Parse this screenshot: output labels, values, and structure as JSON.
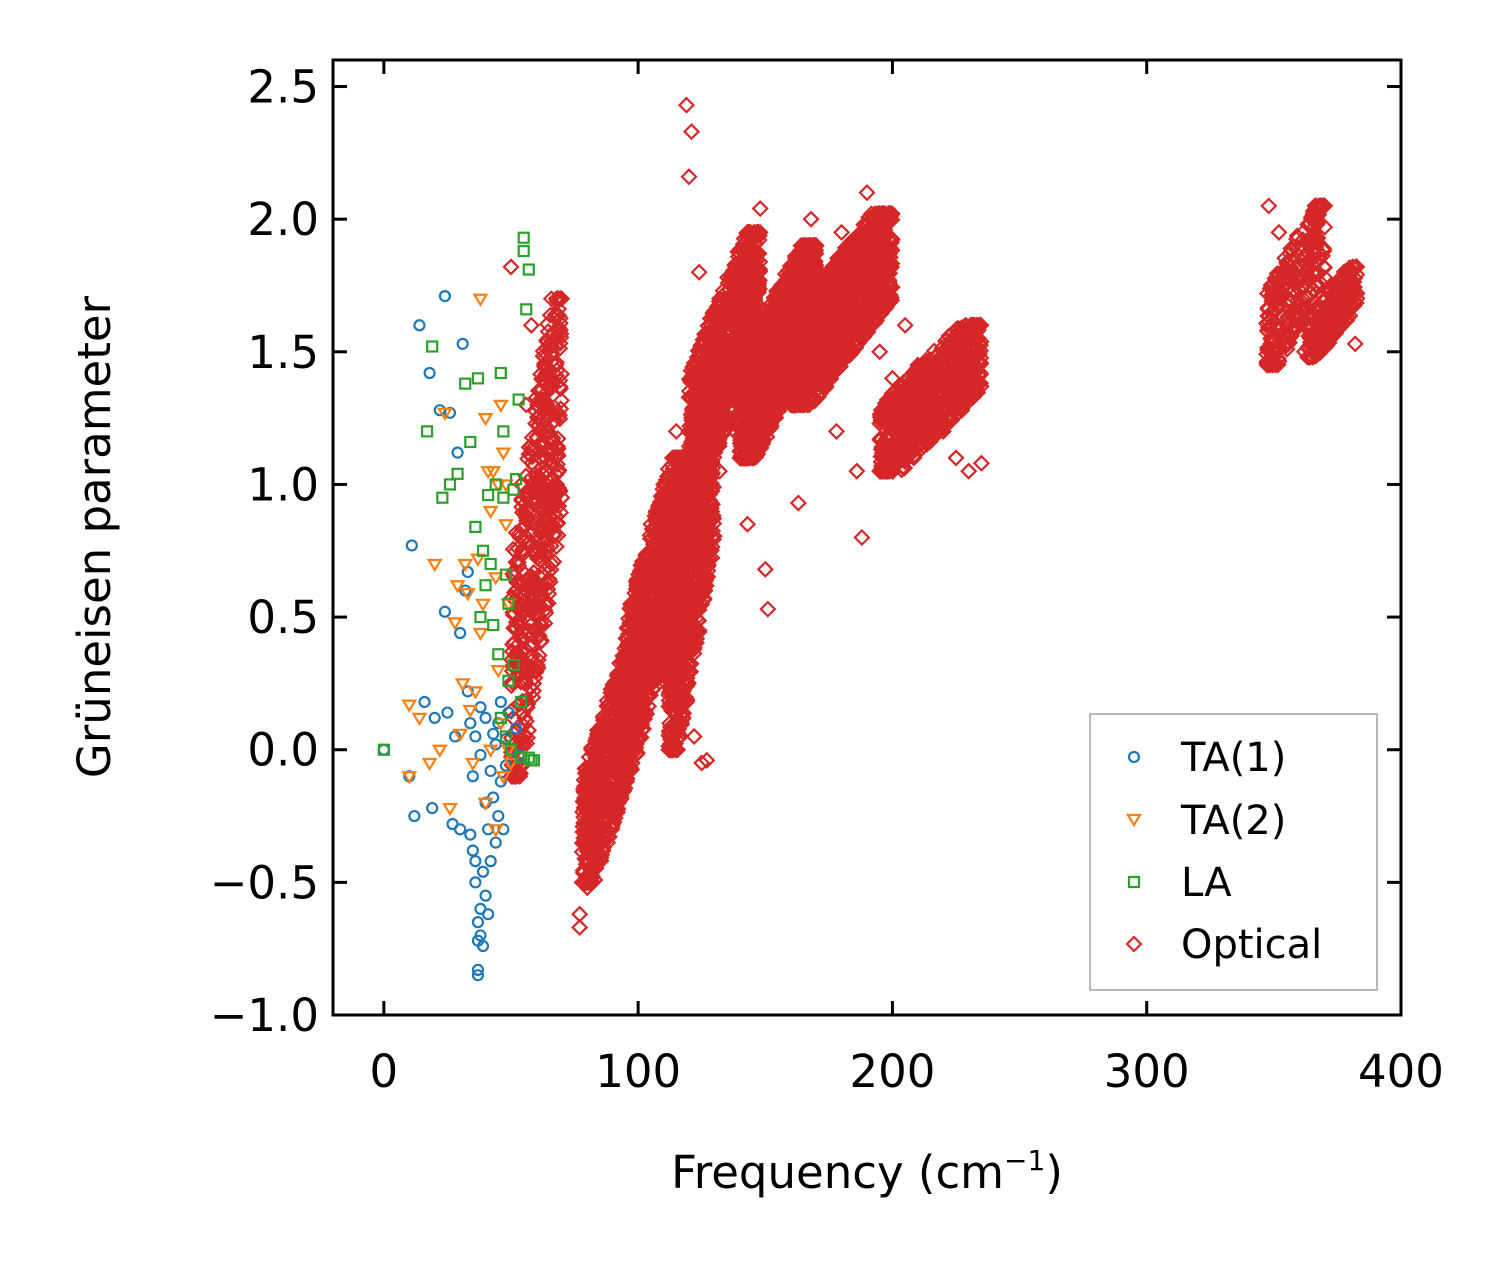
{
  "chart_data": {
    "type": "scatter",
    "title": "",
    "xlabel": "Frequency (cm",
    "xlabel_sup": "−1",
    "xlabel_suffix": ")",
    "ylabel": "Grüneisen parameter",
    "xlim": [
      -20,
      400
    ],
    "ylim": [
      -1.0,
      2.6
    ],
    "xticks": [
      0,
      100,
      200,
      300,
      400
    ],
    "xtick_labels": [
      "0",
      "100",
      "200",
      "300",
      "400"
    ],
    "yticks": [
      -1.0,
      -0.5,
      0.0,
      0.5,
      1.0,
      1.5,
      2.0,
      2.5
    ],
    "ytick_labels": [
      "−1.0",
      "−0.5",
      "0.0",
      "0.5",
      "1.0",
      "1.5",
      "2.0",
      "2.5"
    ],
    "grid": false,
    "legend_position": "bottom-right",
    "series": [
      {
        "name": "TA(1)",
        "marker": "circle",
        "color": "#1f77b4",
        "points": [
          [
            0,
            0.0
          ],
          [
            10,
            -0.1
          ],
          [
            12,
            -0.25
          ],
          [
            14,
            1.6
          ],
          [
            16,
            0.18
          ],
          [
            18,
            1.42
          ],
          [
            19,
            -0.22
          ],
          [
            20,
            0.12
          ],
          [
            22,
            1.28
          ],
          [
            24,
            1.71
          ],
          [
            24,
            0.52
          ],
          [
            25,
            0.14
          ],
          [
            26,
            1.27
          ],
          [
            27,
            -0.28
          ],
          [
            28,
            0.05
          ],
          [
            29,
            1.12
          ],
          [
            30,
            0.44
          ],
          [
            30,
            -0.3
          ],
          [
            31,
            1.53
          ],
          [
            32,
            0.6
          ],
          [
            33,
            0.67
          ],
          [
            33,
            0.22
          ],
          [
            34,
            0.1
          ],
          [
            34,
            -0.32
          ],
          [
            35,
            -0.1
          ],
          [
            35,
            -0.38
          ],
          [
            36,
            0.05
          ],
          [
            36,
            -0.42
          ],
          [
            36,
            -0.5
          ],
          [
            37,
            -0.65
          ],
          [
            37,
            -0.72
          ],
          [
            37,
            -0.83
          ],
          [
            37,
            -0.85
          ],
          [
            38,
            -0.02
          ],
          [
            38,
            -0.7
          ],
          [
            38,
            -0.6
          ],
          [
            38,
            0.16
          ],
          [
            39,
            -0.74
          ],
          [
            39,
            -0.46
          ],
          [
            40,
            -0.55
          ],
          [
            40,
            -0.2
          ],
          [
            40,
            0.12
          ],
          [
            41,
            -0.3
          ],
          [
            41,
            -0.62
          ],
          [
            42,
            -0.08
          ],
          [
            42,
            -0.42
          ],
          [
            43,
            0.06
          ],
          [
            43,
            -0.18
          ],
          [
            44,
            -0.35
          ],
          [
            44,
            0.02
          ],
          [
            45,
            -0.25
          ],
          [
            45,
            0.1
          ],
          [
            46,
            -0.12
          ],
          [
            46,
            0.18
          ],
          [
            47,
            -0.3
          ],
          [
            48,
            0.04
          ],
          [
            48,
            -0.06
          ],
          [
            49,
            0.14
          ],
          [
            50,
            0.0
          ],
          [
            52,
            0.08
          ],
          [
            53,
            -0.02
          ],
          [
            11,
            0.77
          ]
        ]
      },
      {
        "name": "TA(2)",
        "marker": "triangle-down",
        "color": "#ff7f0e",
        "points": [
          [
            10,
            -0.1
          ],
          [
            10,
            0.17
          ],
          [
            14,
            0.12
          ],
          [
            18,
            -0.05
          ],
          [
            20,
            0.7
          ],
          [
            22,
            0.0
          ],
          [
            24,
            1.27
          ],
          [
            26,
            -0.22
          ],
          [
            28,
            0.48
          ],
          [
            29,
            0.62
          ],
          [
            30,
            0.06
          ],
          [
            31,
            0.25
          ],
          [
            32,
            0.7
          ],
          [
            33,
            0.59
          ],
          [
            34,
            0.15
          ],
          [
            35,
            -0.05
          ],
          [
            36,
            0.22
          ],
          [
            37,
            0.72
          ],
          [
            38,
            0.44
          ],
          [
            38,
            1.7
          ],
          [
            39,
            0.55
          ],
          [
            40,
            1.25
          ],
          [
            40,
            -0.2
          ],
          [
            41,
            1.05
          ],
          [
            42,
            0.9
          ],
          [
            42,
            0.0
          ],
          [
            43,
            1.05
          ],
          [
            44,
            0.65
          ],
          [
            44,
            -0.3
          ],
          [
            45,
            1.0
          ],
          [
            45,
            0.3
          ],
          [
            46,
            1.3
          ],
          [
            46,
            0.1
          ],
          [
            47,
            1.12
          ],
          [
            47,
            -0.1
          ],
          [
            48,
            1.0
          ],
          [
            48,
            0.85
          ],
          [
            49,
            0.55
          ],
          [
            49,
            0.0
          ],
          [
            50,
            -0.05
          ]
        ]
      },
      {
        "name": "LA",
        "marker": "square",
        "color": "#2ca02c",
        "points": [
          [
            0,
            0.0
          ],
          [
            17,
            1.2
          ],
          [
            19,
            1.52
          ],
          [
            23,
            0.95
          ],
          [
            26,
            1.0
          ],
          [
            29,
            1.04
          ],
          [
            32,
            1.38
          ],
          [
            34,
            1.16
          ],
          [
            36,
            0.84
          ],
          [
            37,
            1.4
          ],
          [
            38,
            0.5
          ],
          [
            39,
            0.75
          ],
          [
            40,
            0.62
          ],
          [
            41,
            0.96
          ],
          [
            42,
            0.7
          ],
          [
            43,
            0.47
          ],
          [
            44,
            1.0
          ],
          [
            45,
            0.36
          ],
          [
            46,
            1.42
          ],
          [
            46,
            0.12
          ],
          [
            47,
            0.95
          ],
          [
            47,
            1.2
          ],
          [
            48,
            0.66
          ],
          [
            48,
            0.05
          ],
          [
            49,
            0.55
          ],
          [
            49,
            0.26
          ],
          [
            50,
            0.0
          ],
          [
            51,
            0.98
          ],
          [
            51,
            0.32
          ],
          [
            52,
            1.02
          ],
          [
            53,
            1.32
          ],
          [
            54,
            0.18
          ],
          [
            54,
            -0.03
          ],
          [
            55,
            1.93
          ],
          [
            55,
            1.88
          ],
          [
            56,
            1.66
          ],
          [
            57,
            1.81
          ],
          [
            57,
            -0.03
          ],
          [
            58,
            -0.04
          ],
          [
            59,
            -0.04
          ]
        ]
      },
      {
        "name": "Optical",
        "marker": "diamond",
        "color": "#d62728",
        "points": [
          [
            50,
            1.82
          ],
          [
            52,
            0.6
          ],
          [
            54,
            1.0
          ],
          [
            56,
            1.3
          ],
          [
            58,
            1.6
          ],
          [
            60,
            0.3
          ],
          [
            62,
            0.9
          ],
          [
            64,
            1.2
          ],
          [
            66,
            0.7
          ],
          [
            68,
            1.0
          ],
          [
            70,
            0.95
          ],
          [
            77,
            -0.62
          ],
          [
            77,
            -0.67
          ],
          [
            80,
            -0.52
          ],
          [
            82,
            -0.48
          ],
          [
            85,
            -0.2
          ],
          [
            88,
            -0.35
          ],
          [
            90,
            0.05
          ],
          [
            92,
            -0.1
          ],
          [
            95,
            0.3
          ],
          [
            98,
            0.45
          ],
          [
            100,
            0.6
          ],
          [
            103,
            0.25
          ],
          [
            105,
            0.85
          ],
          [
            108,
            0.5
          ],
          [
            110,
            1.0
          ],
          [
            112,
            0.72
          ],
          [
            115,
            1.2
          ],
          [
            118,
            0.9
          ],
          [
            119,
            2.43
          ],
          [
            120,
            2.16
          ],
          [
            121,
            2.33
          ],
          [
            122,
            0.05
          ],
          [
            124,
            1.8
          ],
          [
            125,
            -0.05
          ],
          [
            127,
            -0.04
          ],
          [
            130,
            1.5
          ],
          [
            132,
            1.05
          ],
          [
            135,
            1.7
          ],
          [
            138,
            1.2
          ],
          [
            140,
            1.6
          ],
          [
            143,
            0.85
          ],
          [
            145,
            1.75
          ],
          [
            148,
            2.04
          ],
          [
            150,
            0.68
          ],
          [
            151,
            0.53
          ],
          [
            155,
            1.5
          ],
          [
            160,
            1.65
          ],
          [
            163,
            0.93
          ],
          [
            165,
            1.85
          ],
          [
            168,
            2.0
          ],
          [
            172,
            1.35
          ],
          [
            175,
            1.8
          ],
          [
            178,
            1.2
          ],
          [
            180,
            1.95
          ],
          [
            183,
            1.55
          ],
          [
            186,
            1.05
          ],
          [
            188,
            0.8
          ],
          [
            190,
            2.1
          ],
          [
            192,
            1.7
          ],
          [
            195,
            1.5
          ],
          [
            198,
            1.75
          ],
          [
            200,
            1.4
          ],
          [
            205,
            1.6
          ],
          [
            210,
            1.45
          ],
          [
            215,
            1.3
          ],
          [
            220,
            1.2
          ],
          [
            225,
            1.1
          ],
          [
            230,
            1.05
          ],
          [
            235,
            1.08
          ],
          [
            348,
            2.05
          ],
          [
            352,
            1.95
          ],
          [
            355,
            1.8
          ],
          [
            358,
            1.6
          ],
          [
            362,
            1.5
          ],
          [
            366,
            1.55
          ],
          [
            370,
            1.78
          ],
          [
            374,
            1.72
          ],
          [
            378,
            1.62
          ],
          [
            382,
            1.53
          ]
        ],
        "clouds": [
          {
            "x": [
              50,
              70
            ],
            "y": [
              -0.1,
              1.7
            ],
            "n": 500
          },
          {
            "x": [
              78,
              100
            ],
            "y": [
              -0.5,
              0.4
            ],
            "n": 700
          },
          {
            "x": [
              95,
              118
            ],
            "y": [
              0.0,
              1.1
            ],
            "n": 900
          },
          {
            "x": [
              112,
              130
            ],
            "y": [
              0.0,
              1.4
            ],
            "n": 800
          },
          {
            "x": [
              120,
              148
            ],
            "y": [
              1.0,
              1.95
            ],
            "n": 900
          },
          {
            "x": [
              140,
              170
            ],
            "y": [
              1.1,
              1.9
            ],
            "n": 1100
          },
          {
            "x": [
              160,
              200
            ],
            "y": [
              1.3,
              2.02
            ],
            "n": 1200
          },
          {
            "x": [
              195,
              235
            ],
            "y": [
              1.05,
              1.6
            ],
            "n": 700
          },
          {
            "x": [
              347,
              370
            ],
            "y": [
              1.45,
              2.05
            ],
            "n": 250
          },
          {
            "x": [
              363,
              383
            ],
            "y": [
              1.48,
              1.82
            ],
            "n": 260
          }
        ]
      }
    ]
  }
}
